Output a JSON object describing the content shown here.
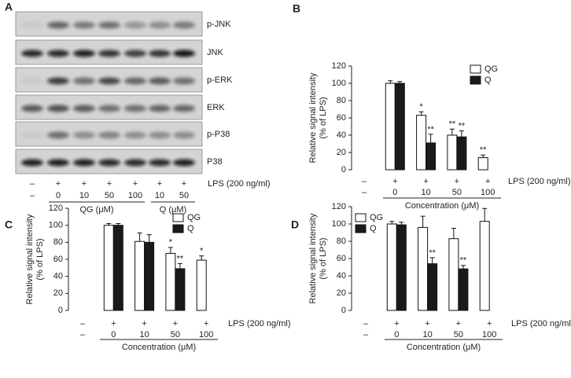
{
  "blot": {
    "panel": "A",
    "proteins": [
      "p-JNK",
      "JNK",
      "p-ERK",
      "ERK",
      "p-P38",
      "P38"
    ],
    "lps_row": [
      "–",
      "+",
      "+",
      "+",
      "+",
      "+",
      "+"
    ],
    "concentrations": [
      "–",
      "0",
      "10",
      "50",
      "100",
      "10",
      "50"
    ],
    "lps_label": "LPS (200 ng/ml)",
    "groups": [
      "QG (μM)",
      "Q (μM)"
    ]
  },
  "chart_data": [
    {
      "type": "bar",
      "panel": "B",
      "ylabel": [
        "Relative signal intensity",
        "(% of LPS)"
      ],
      "lps_row": [
        "–",
        "+",
        "+",
        "+",
        "+"
      ],
      "categories": [
        "–",
        "0",
        "10",
        "50",
        "100"
      ],
      "lps_label": "LPS (200 ng/ml)",
      "xlabel": "Concentration (μM)",
      "ylim": [
        0,
        120
      ],
      "yticks": [
        0,
        20,
        40,
        60,
        80,
        100,
        120
      ],
      "legend": "upper right",
      "series": [
        {
          "name": "QG",
          "color": "#ffffff",
          "values": [
            null,
            100,
            63,
            40,
            14
          ],
          "errors": [
            null,
            3,
            4,
            7,
            3
          ],
          "significance": [
            null,
            null,
            "*",
            "**",
            "**"
          ]
        },
        {
          "name": "Q",
          "color": "#1a1a1a",
          "values": [
            null,
            100,
            31,
            38,
            null
          ],
          "errors": [
            null,
            2,
            10,
            7,
            null
          ],
          "significance": [
            null,
            null,
            "**",
            "**",
            null
          ]
        }
      ]
    },
    {
      "type": "bar",
      "panel": "C",
      "ylabel": [
        "Relative signal intensity",
        "(% of LPS)"
      ],
      "lps_row": [
        "–",
        "+",
        "+",
        "+",
        "+"
      ],
      "categories": [
        "–",
        "0",
        "10",
        "50",
        "100"
      ],
      "lps_label": "LPS (200 ng/ml)",
      "xlabel": "Concentration (μM)",
      "ylim": [
        0,
        120
      ],
      "yticks": [
        0,
        20,
        40,
        60,
        80,
        100,
        120
      ],
      "legend": "upper right",
      "series": [
        {
          "name": "QG",
          "color": "#ffffff",
          "values": [
            null,
            100,
            81,
            67,
            59
          ],
          "errors": [
            null,
            2,
            10,
            7,
            5
          ],
          "significance": [
            null,
            null,
            null,
            "*",
            "*"
          ]
        },
        {
          "name": "Q",
          "color": "#1a1a1a",
          "values": [
            null,
            100,
            80,
            49,
            null
          ],
          "errors": [
            null,
            2,
            9,
            6,
            null
          ],
          "significance": [
            null,
            null,
            null,
            "**",
            null
          ]
        }
      ]
    },
    {
      "type": "bar",
      "panel": "D",
      "ylabel": [
        "Relative signal intensity",
        "(% of LPS)"
      ],
      "lps_row": [
        "–",
        "+",
        "+",
        "+",
        "+"
      ],
      "categories": [
        "–",
        "0",
        "10",
        "50",
        "100"
      ],
      "lps_label": "LPS (200 ng/ml)",
      "xlabel": "Concentration (μM)",
      "ylim": [
        0,
        120
      ],
      "yticks": [
        0,
        20,
        40,
        60,
        80,
        100,
        120
      ],
      "legend": "upper left",
      "series": [
        {
          "name": "QG",
          "color": "#ffffff",
          "values": [
            null,
            100,
            96,
            83,
            103
          ],
          "errors": [
            null,
            3,
            13,
            12,
            15
          ],
          "significance": [
            null,
            null,
            null,
            null,
            null
          ]
        },
        {
          "name": "Q",
          "color": "#1a1a1a",
          "values": [
            null,
            99,
            54,
            48,
            null
          ],
          "errors": [
            null,
            3,
            7,
            4,
            null
          ],
          "significance": [
            null,
            null,
            "**",
            "**",
            null
          ]
        }
      ]
    }
  ]
}
